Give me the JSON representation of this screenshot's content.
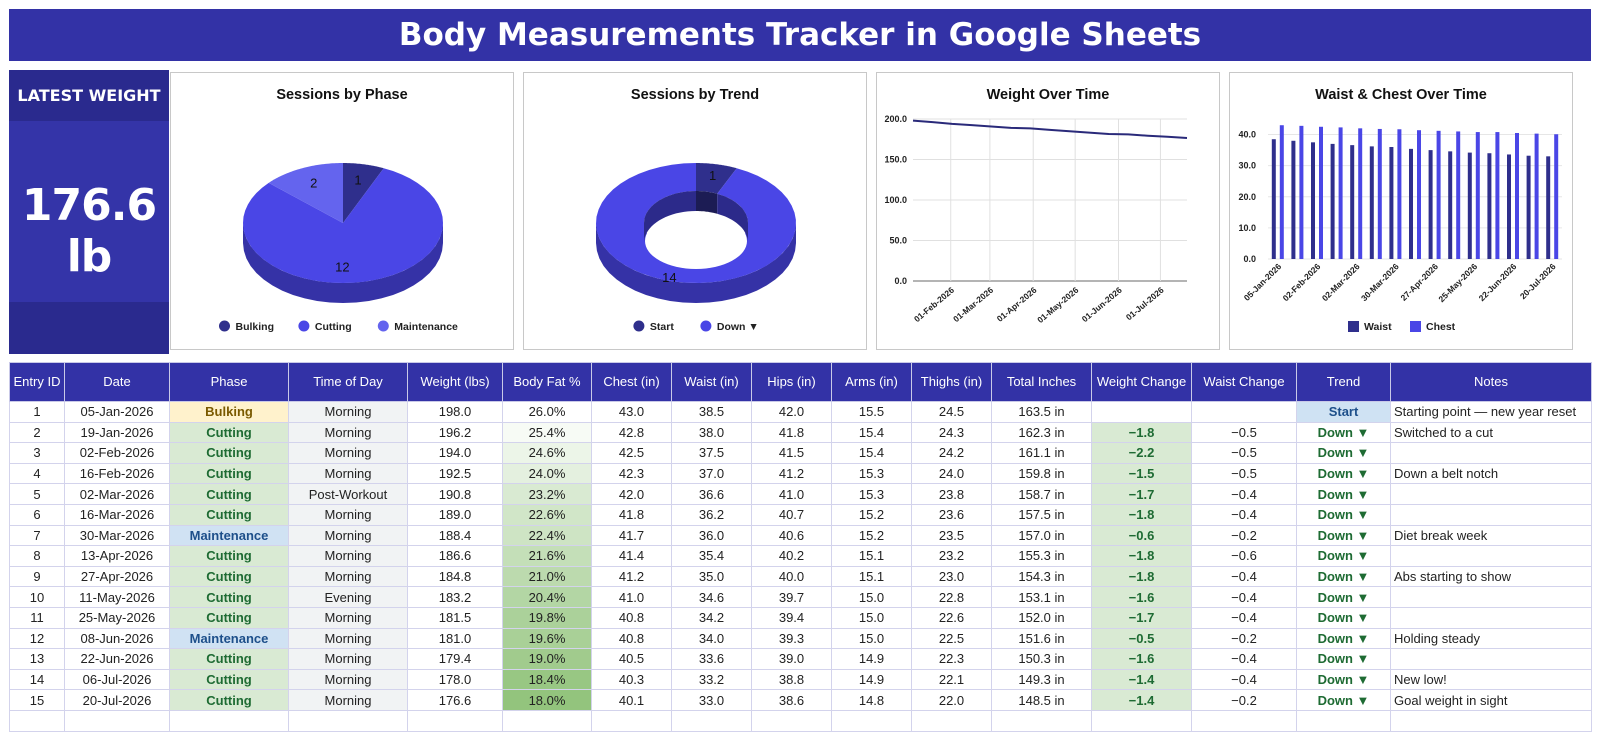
{
  "title": "Body Measurements Tracker in Google Sheets",
  "kpi": {
    "label": "LATEST WEIGHT",
    "value": "176.6 lb"
  },
  "colors": {
    "brand": "#3332a6",
    "bulking": "#2f2f8c",
    "cutting": "#4a46e6",
    "maintenance": "#6464ee",
    "good_green": "#1e6b33"
  },
  "charts": {
    "phase": {
      "title": "Sessions by Phase",
      "legend": [
        "Bulking",
        "Cutting",
        "Maintenance"
      ]
    },
    "trend": {
      "title": "Sessions by Trend",
      "legend": [
        "Start",
        "Down ▼"
      ]
    },
    "weight": {
      "title": "Weight Over Time"
    },
    "waist": {
      "title": "Waist & Chest Over Time",
      "legend": [
        "Waist",
        "Chest"
      ]
    }
  },
  "chart_data": [
    {
      "type": "pie",
      "title": "Sessions by Phase",
      "categories": [
        "Bulking",
        "Cutting",
        "Maintenance"
      ],
      "values": [
        1,
        12,
        2
      ],
      "legend": "bottom"
    },
    {
      "type": "pie",
      "title": "Sessions by Trend",
      "categories": [
        "Start",
        "Down ▼"
      ],
      "values": [
        1,
        14
      ],
      "donut": true,
      "legend": "bottom"
    },
    {
      "type": "line",
      "title": "Weight Over Time",
      "x": [
        "2026-01-05",
        "2026-01-19",
        "2026-02-02",
        "2026-02-16",
        "2026-03-02",
        "2026-03-16",
        "2026-03-30",
        "2026-04-13",
        "2026-04-27",
        "2026-05-11",
        "2026-05-25",
        "2026-06-08",
        "2026-06-22",
        "2026-07-06",
        "2026-07-20"
      ],
      "series": [
        {
          "values": [
            198.0,
            196.2,
            194.0,
            192.5,
            190.8,
            189.0,
            188.4,
            186.6,
            184.8,
            183.2,
            181.5,
            181.0,
            179.4,
            178.0,
            176.6
          ]
        }
      ],
      "x_ticks": [
        "01-Feb-2026",
        "01-Mar-2026",
        "01-Apr-2026",
        "01-May-2026",
        "01-Jun-2026",
        "01-Jul-2026"
      ],
      "y_ticks": [
        "0.0",
        "50.0",
        "100.0",
        "150.0",
        "200.0"
      ],
      "ylim": [
        0,
        200
      ],
      "grid": true
    },
    {
      "type": "bar",
      "title": "Waist & Chest Over Time",
      "categories": [
        "05-Jan-2026",
        "19-Jan-2026",
        "02-Feb-2026",
        "16-Feb-2026",
        "02-Mar-2026",
        "16-Mar-2026",
        "30-Mar-2026",
        "13-Apr-2026",
        "27-Apr-2026",
        "11-May-2026",
        "25-May-2026",
        "08-Jun-2026",
        "22-Jun-2026",
        "06-Jul-2026",
        "20-Jul-2026"
      ],
      "series": [
        {
          "name": "Waist",
          "values": [
            38.5,
            38.0,
            37.5,
            37.0,
            36.6,
            36.2,
            36.0,
            35.4,
            35.0,
            34.6,
            34.2,
            34.0,
            33.6,
            33.2,
            33.0
          ]
        },
        {
          "name": "Chest",
          "values": [
            43.0,
            42.8,
            42.5,
            42.3,
            42.0,
            41.8,
            41.7,
            41.4,
            41.2,
            41.0,
            40.8,
            40.8,
            40.5,
            40.3,
            40.1
          ]
        }
      ],
      "y_ticks": [
        "0.0",
        "10.0",
        "20.0",
        "30.0",
        "40.0"
      ],
      "ylim": [
        0,
        45
      ],
      "legend": "bottom"
    }
  ],
  "table": {
    "headers": [
      "Entry ID",
      "Date",
      "Phase",
      "Time of Day",
      "Weight (lbs)",
      "Body Fat %",
      "Chest (in)",
      "Waist (in)",
      "Hips (in)",
      "Arms (in)",
      "Thighs (in)",
      "Total Inches",
      "Weight Change",
      "Waist Change",
      "Trend",
      "Notes"
    ],
    "rows": [
      [
        "1",
        "05-Jan-2026",
        "Bulking",
        "Morning",
        "198.0",
        "26.0%",
        "43.0",
        "38.5",
        "42.0",
        "15.5",
        "24.5",
        "163.5 in",
        "",
        "",
        "Start",
        "Starting point — new year reset"
      ],
      [
        "2",
        "19-Jan-2026",
        "Cutting",
        "Morning",
        "196.2",
        "25.4%",
        "42.8",
        "38.0",
        "41.8",
        "15.4",
        "24.3",
        "162.3 in",
        "−1.8",
        "−0.5",
        "Down ▼",
        "Switched to a cut"
      ],
      [
        "3",
        "02-Feb-2026",
        "Cutting",
        "Morning",
        "194.0",
        "24.6%",
        "42.5",
        "37.5",
        "41.5",
        "15.4",
        "24.2",
        "161.1 in",
        "−2.2",
        "−0.5",
        "Down ▼",
        ""
      ],
      [
        "4",
        "16-Feb-2026",
        "Cutting",
        "Morning",
        "192.5",
        "24.0%",
        "42.3",
        "37.0",
        "41.2",
        "15.3",
        "24.0",
        "159.8 in",
        "−1.5",
        "−0.5",
        "Down ▼",
        "Down a belt notch"
      ],
      [
        "5",
        "02-Mar-2026",
        "Cutting",
        "Post-Workout",
        "190.8",
        "23.2%",
        "42.0",
        "36.6",
        "41.0",
        "15.3",
        "23.8",
        "158.7 in",
        "−1.7",
        "−0.4",
        "Down ▼",
        ""
      ],
      [
        "6",
        "16-Mar-2026",
        "Cutting",
        "Morning",
        "189.0",
        "22.6%",
        "41.8",
        "36.2",
        "40.7",
        "15.2",
        "23.6",
        "157.5 in",
        "−1.8",
        "−0.4",
        "Down ▼",
        ""
      ],
      [
        "7",
        "30-Mar-2026",
        "Maintenance",
        "Morning",
        "188.4",
        "22.4%",
        "41.7",
        "36.0",
        "40.6",
        "15.2",
        "23.5",
        "157.0 in",
        "−0.6",
        "−0.2",
        "Down ▼",
        "Diet break week"
      ],
      [
        "8",
        "13-Apr-2026",
        "Cutting",
        "Morning",
        "186.6",
        "21.6%",
        "41.4",
        "35.4",
        "40.2",
        "15.1",
        "23.2",
        "155.3 in",
        "−1.8",
        "−0.6",
        "Down ▼",
        ""
      ],
      [
        "9",
        "27-Apr-2026",
        "Cutting",
        "Morning",
        "184.8",
        "21.0%",
        "41.2",
        "35.0",
        "40.0",
        "15.1",
        "23.0",
        "154.3 in",
        "−1.8",
        "−0.4",
        "Down ▼",
        "Abs starting to show"
      ],
      [
        "10",
        "11-May-2026",
        "Cutting",
        "Evening",
        "183.2",
        "20.4%",
        "41.0",
        "34.6",
        "39.7",
        "15.0",
        "22.8",
        "153.1 in",
        "−1.6",
        "−0.4",
        "Down ▼",
        ""
      ],
      [
        "11",
        "25-May-2026",
        "Cutting",
        "Morning",
        "181.5",
        "19.8%",
        "40.8",
        "34.2",
        "39.4",
        "15.0",
        "22.6",
        "152.0 in",
        "−1.7",
        "−0.4",
        "Down ▼",
        ""
      ],
      [
        "12",
        "08-Jun-2026",
        "Maintenance",
        "Morning",
        "181.0",
        "19.6%",
        "40.8",
        "34.0",
        "39.3",
        "15.0",
        "22.5",
        "151.6 in",
        "−0.5",
        "−0.2",
        "Down ▼",
        "Holding steady"
      ],
      [
        "13",
        "22-Jun-2026",
        "Cutting",
        "Morning",
        "179.4",
        "19.0%",
        "40.5",
        "33.6",
        "39.0",
        "14.9",
        "22.3",
        "150.3 in",
        "−1.6",
        "−0.4",
        "Down ▼",
        ""
      ],
      [
        "14",
        "06-Jul-2026",
        "Cutting",
        "Morning",
        "178.0",
        "18.4%",
        "40.3",
        "33.2",
        "38.8",
        "14.9",
        "22.1",
        "149.3 in",
        "−1.4",
        "−0.4",
        "Down ▼",
        "New low!"
      ],
      [
        "15",
        "20-Jul-2026",
        "Cutting",
        "Morning",
        "176.6",
        "18.0%",
        "40.1",
        "33.0",
        "38.6",
        "14.8",
        "22.0",
        "148.5 in",
        "−1.4",
        "−0.2",
        "Down ▼",
        "Goal weight in sight"
      ]
    ]
  }
}
